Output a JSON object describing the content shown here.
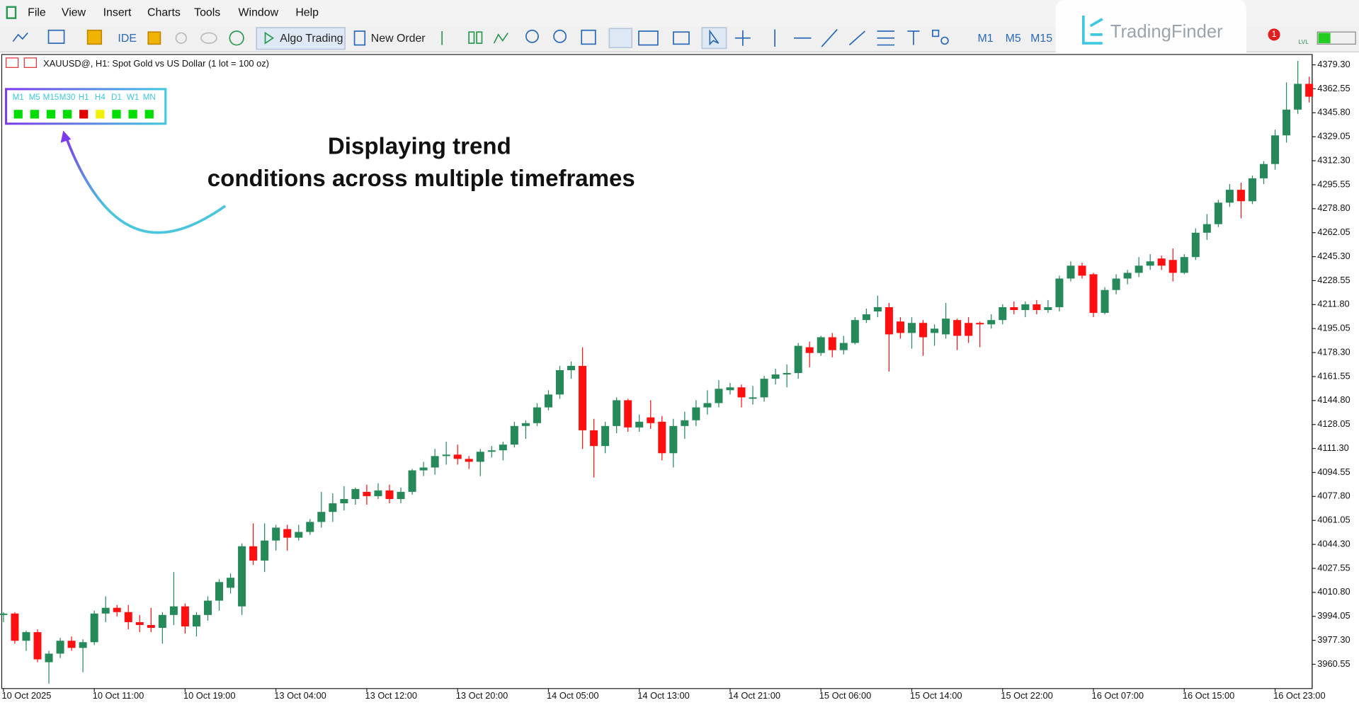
{
  "menu": [
    "File",
    "View",
    "Insert",
    "Charts",
    "Tools",
    "Window",
    "Help"
  ],
  "toolbar": {
    "ide": "IDE",
    "algo": "Algo Trading",
    "new_order": "New Order",
    "timeframes": [
      "M1",
      "M5",
      "M15"
    ],
    "badge": 1,
    "lvl": "LVL"
  },
  "logo": "TradingFinder",
  "indicator": {
    "timeframes": [
      "M1",
      "M5",
      "M15",
      "M30",
      "H1",
      "H4",
      "D1",
      "W1",
      "MN"
    ],
    "states": [
      "#00dd00",
      "#00dd00",
      "#00dd00",
      "#00dd00",
      "#e00000",
      "#f2f200",
      "#00dd00",
      "#00dd00",
      "#00dd00"
    ]
  },
  "annotation": {
    "lines": [
      "Displaying trend",
      "conditions across multiple timeframes"
    ]
  },
  "chart_data": {
    "type": "candlestick",
    "title": "XAUUSD@, H1: Spot Gold vs US Dollar (1 lot = 100 oz)",
    "up_color": "#26895a",
    "down_color": "#ff1010",
    "categories": [
      "10 Oct 2025",
      null,
      null,
      null,
      null,
      null,
      null,
      null,
      "10 Oct 11:00",
      null,
      null,
      null,
      null,
      null,
      null,
      null,
      "10 Oct 19:00",
      null,
      null,
      null,
      null,
      null,
      null,
      null,
      "13 Oct 04:00",
      null,
      null,
      null,
      null,
      null,
      null,
      null,
      "13 Oct 12:00",
      null,
      null,
      null,
      null,
      null,
      null,
      null,
      "13 Oct 20:00",
      null,
      null,
      null,
      null,
      null,
      null,
      null,
      "14 Oct 05:00",
      null,
      null,
      null,
      null,
      null,
      null,
      null,
      "14 Oct 13:00",
      null,
      null,
      null,
      null,
      null,
      null,
      null,
      "14 Oct 21:00",
      null,
      null,
      null,
      null,
      null,
      null,
      null,
      "15 Oct 06:00",
      null,
      null,
      null,
      null,
      null,
      null,
      null,
      "15 Oct 14:00",
      null,
      null,
      null,
      null,
      null,
      null,
      null,
      "15 Oct 22:00",
      null,
      null,
      null,
      null,
      null,
      null,
      null,
      "16 Oct 07:00",
      null,
      null,
      null,
      null,
      null,
      null,
      null,
      "16 Oct 15:00",
      null,
      null,
      null,
      null,
      null,
      null,
      null,
      "16 Oct 23:00",
      null,
      null,
      null
    ],
    "open": [
      3995,
      3996,
      3977,
      3983,
      3962,
      3968,
      3977,
      3972,
      3976,
      3996,
      4000,
      3997,
      3990,
      3988,
      3986,
      3995,
      4001,
      3987,
      3995,
      4005,
      4014,
      4001,
      4043,
      4033,
      4047,
      4055,
      4049,
      4053,
      4060,
      4067,
      4073,
      4076,
      4081,
      4078,
      4082,
      4076,
      4081,
      4096,
      4098,
      4106,
      4107,
      4104,
      4102,
      4109,
      4110,
      4114,
      4127,
      4129,
      4140,
      4149,
      4166,
      4169,
      4124,
      4113,
      4127,
      4145,
      4126,
      4133,
      4130,
      4108,
      4127,
      4131,
      4140,
      4143,
      4152,
      4154,
      4146,
      4147,
      4160,
      4163,
      4164,
      4182,
      4178,
      4189,
      4180,
      4185,
      4201,
      4207,
      4210,
      4200,
      4192,
      4199,
      4192,
      4191,
      4201,
      4199,
      4199,
      4198,
      4201,
      4210,
      4208,
      4212,
      4208,
      4210,
      4230,
      4239,
      4233,
      4206,
      4222,
      4230,
      4234,
      4239,
      4244,
      4243,
      4234,
      4245,
      4262,
      4268,
      4283,
      4292,
      4284,
      4300,
      4310,
      4330,
      4348,
      4366
    ],
    "high": [
      3997,
      3997,
      3984,
      3985,
      3970,
      3979,
      3980,
      3978,
      3998,
      4008,
      4002,
      4002,
      3995,
      4000,
      3997,
      4025,
      4003,
      3997,
      4008,
      4020,
      4024,
      4045,
      4059,
      4059,
      4058,
      4058,
      4058,
      4062,
      4081,
      4080,
      4085,
      4084,
      4086,
      4087,
      4086,
      4084,
      4097,
      4102,
      4111,
      4116,
      4114,
      4106,
      4111,
      4113,
      4116,
      4130,
      4131,
      4143,
      4152,
      4169,
      4172,
      4182,
      4132,
      4130,
      4147,
      4146,
      4135,
      4145,
      4134,
      4132,
      4137,
      4145,
      4152,
      4159,
      4157,
      4156,
      4155,
      4162,
      4167,
      4170,
      4185,
      4186,
      4190,
      4192,
      4190,
      4203,
      4209,
      4218,
      4213,
      4203,
      4203,
      4201,
      4198,
      4213,
      4202,
      4203,
      4200,
      4205,
      4212,
      4214,
      4214,
      4215,
      4215,
      4232,
      4242,
      4241,
      4234,
      4224,
      4233,
      4236,
      4245,
      4247,
      4246,
      4251,
      4247,
      4265,
      4275,
      4285,
      4296,
      4297,
      4302,
      4312,
      4334,
      4367,
      4382,
      4371
    ],
    "low": [
      3990,
      3975,
      3970,
      3962,
      3947,
      3965,
      3970,
      3955,
      3974,
      3990,
      3994,
      3985,
      3983,
      3983,
      3975,
      3988,
      3982,
      3980,
      3991,
      3998,
      4010,
      3995,
      4030,
      4025,
      4040,
      4040,
      4047,
      4051,
      4056,
      4060,
      4068,
      4072,
      4072,
      4076,
      4073,
      4073,
      4079,
      4092,
      4093,
      4100,
      4100,
      4097,
      4092,
      4105,
      4103,
      4112,
      4118,
      4127,
      4138,
      4146,
      4160,
      4111,
      4091,
      4108,
      4122,
      4123,
      4123,
      4125,
      4103,
      4098,
      4118,
      4127,
      4135,
      4140,
      4149,
      4140,
      4142,
      4144,
      4156,
      4154,
      4160,
      4168,
      4176,
      4175,
      4177,
      4184,
      4199,
      4203,
      4165,
      4188,
      4181,
      4176,
      4183,
      4188,
      4180,
      4185,
      4182,
      4195,
      4198,
      4205,
      4203,
      4205,
      4206,
      4207,
      4228,
      4230,
      4203,
      4205,
      4219,
      4226,
      4231,
      4236,
      4236,
      4228,
      4233,
      4243,
      4257,
      4266,
      4280,
      4272,
      4282,
      4296,
      4306,
      4325,
      4345,
      4353
    ],
    "close": [
      3996,
      3977,
      3983,
      3964,
      3968,
      3977,
      3972,
      3976,
      3996,
      4000,
      3997,
      3990,
      3988,
      3986,
      3995,
      4001,
      3987,
      3995,
      4005,
      4018,
      4021,
      4043,
      4033,
      4047,
      4056,
      4049,
      4053,
      4060,
      4067,
      4073,
      4076,
      4083,
      4078,
      4082,
      4076,
      4081,
      4096,
      4098,
      4106,
      4107,
      4104,
      4102,
      4109,
      4110,
      4114,
      4127,
      4129,
      4140,
      4149,
      4166,
      4169,
      4124,
      4113,
      4127,
      4145,
      4126,
      4130,
      4129,
      4108,
      4127,
      4131,
      4140,
      4143,
      4153,
      4154,
      4147,
      4147,
      4160,
      4163,
      4164,
      4183,
      4178,
      4189,
      4180,
      4185,
      4201,
      4205,
      4210,
      4191,
      4192,
      4199,
      4189,
      4195,
      4202,
      4190,
      4190,
      4198,
      4201,
      4210,
      4208,
      4212,
      4208,
      4210,
      4230,
      4239,
      4232,
      4206,
      4222,
      4230,
      4234,
      4239,
      4242,
      4239,
      4234,
      4245,
      4262,
      4268,
      4283,
      4292,
      4284,
      4300,
      4310,
      4330,
      4348,
      4366,
      4357
    ],
    "ylim": [
      3944.2,
      4386.5
    ],
    "yticks": [
      3960.55,
      {
        "value": 3977.3,
        "label": "3977.30"
      },
      3994.05,
      {
        "value": 4010.8,
        "label": "4010.80"
      },
      4027.55,
      {
        "value": 4044.3,
        "label": "4044.30"
      },
      4061.05,
      {
        "value": 4077.8,
        "label": "4077.80"
      },
      4094.55,
      {
        "value": 4111.3,
        "label": "4111.30"
      },
      4128.05,
      {
        "value": 4144.8,
        "label": "4144.80"
      },
      4161.55,
      {
        "value": 4178.3,
        "label": "4178.30"
      },
      4195.05,
      {
        "value": 4211.8,
        "label": "4211.80"
      },
      4228.55,
      {
        "value": 4245.3,
        "label": "4245.30"
      },
      4262.05,
      {
        "value": 4278.8,
        "label": "4278.80"
      },
      4295.55,
      {
        "value": 4312.3,
        "label": "4312.30"
      },
      4329.05,
      {
        "value": 4345.8,
        "label": "4345.80"
      },
      4362.55,
      {
        "value": 4379.3,
        "label": "4379.30"
      }
    ]
  }
}
